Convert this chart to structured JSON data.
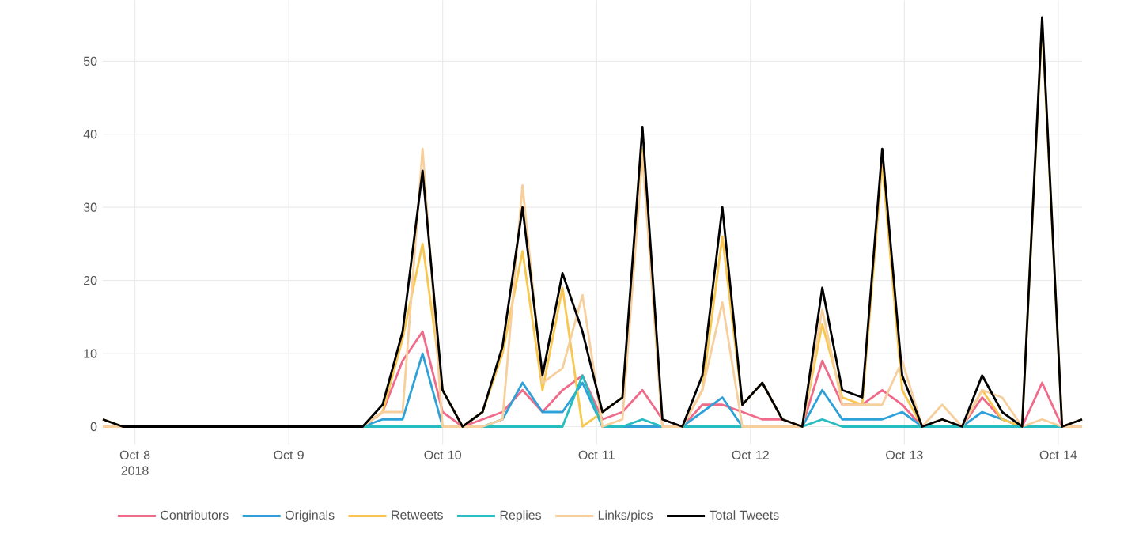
{
  "chart_data": {
    "type": "line",
    "x": [
      "2018-10-07T19:00",
      "2018-10-07T22:07",
      "2018-10-08T01:14",
      "2018-10-08T04:21",
      "2018-10-08T07:28",
      "2018-10-08T10:35",
      "2018-10-08T13:42",
      "2018-10-08T16:49",
      "2018-10-08T19:56",
      "2018-10-08T23:03",
      "2018-10-09T02:10",
      "2018-10-09T05:17",
      "2018-10-09T08:24",
      "2018-10-09T11:31",
      "2018-10-09T14:38",
      "2018-10-09T17:45",
      "2018-10-09T20:52",
      "2018-10-09T23:59",
      "2018-10-10T03:06",
      "2018-10-10T06:13",
      "2018-10-10T09:20",
      "2018-10-10T12:27",
      "2018-10-10T15:34",
      "2018-10-10T18:41",
      "2018-10-10T21:48",
      "2018-10-11T00:55",
      "2018-10-11T04:02",
      "2018-10-11T07:09",
      "2018-10-11T10:16",
      "2018-10-11T13:23",
      "2018-10-11T16:30",
      "2018-10-11T19:37",
      "2018-10-11T22:44",
      "2018-10-12T01:51",
      "2018-10-12T04:58",
      "2018-10-12T08:05",
      "2018-10-12T11:12",
      "2018-10-12T14:19",
      "2018-10-12T17:26",
      "2018-10-12T20:33",
      "2018-10-12T23:40",
      "2018-10-13T02:47",
      "2018-10-13T05:54",
      "2018-10-13T09:01",
      "2018-10-13T12:08",
      "2018-10-13T15:15",
      "2018-10-13T18:22",
      "2018-10-13T21:29",
      "2018-10-14T00:36",
      "2018-10-14T03:43"
    ],
    "series": [
      {
        "name": "Contributors",
        "color": "#f06a8a",
        "values": [
          null,
          null,
          null,
          null,
          null,
          null,
          null,
          null,
          null,
          null,
          null,
          null,
          0,
          0,
          2,
          9,
          13,
          2,
          0,
          1,
          2,
          5,
          2,
          5,
          7,
          1,
          2,
          5,
          1,
          0,
          3,
          3,
          2,
          1,
          1,
          0,
          9,
          3,
          3,
          5,
          3,
          0,
          0,
          0,
          4,
          1,
          0,
          6,
          0,
          0
        ]
      },
      {
        "name": "Originals",
        "color": "#2ea1d9",
        "values": [
          null,
          null,
          null,
          null,
          null,
          null,
          null,
          null,
          null,
          null,
          null,
          null,
          0,
          0,
          1,
          1,
          10,
          0,
          0,
          0,
          1,
          6,
          2,
          2,
          6,
          0,
          0,
          0,
          0,
          0,
          2,
          4,
          0,
          0,
          0,
          0,
          5,
          1,
          1,
          1,
          2,
          0,
          0,
          0,
          2,
          1,
          0,
          0,
          0,
          0
        ]
      },
      {
        "name": "Retweets",
        "color": "#f9c74f",
        "values": [
          1,
          0,
          0,
          0,
          0,
          0,
          0,
          0,
          0,
          0,
          0,
          0,
          0,
          0,
          2,
          12,
          25,
          5,
          0,
          2,
          10,
          24,
          5,
          19,
          0,
          2,
          4,
          38,
          0,
          0,
          5,
          26,
          3,
          6,
          1,
          0,
          14,
          4,
          3,
          36,
          5,
          0,
          1,
          0,
          5,
          1,
          0,
          55,
          0,
          1
        ]
      },
      {
        "name": "Replies",
        "color": "#26bcc0",
        "values": [
          null,
          null,
          null,
          null,
          null,
          null,
          null,
          null,
          null,
          null,
          null,
          null,
          0,
          0,
          0,
          0,
          0,
          0,
          0,
          0,
          0,
          0,
          0,
          0,
          7,
          0,
          0,
          1,
          0,
          0,
          0,
          0,
          0,
          0,
          0,
          0,
          1,
          0,
          0,
          0,
          0,
          0,
          0,
          0,
          0,
          0,
          0,
          0,
          0,
          0
        ]
      },
      {
        "name": "Links/pics",
        "color": "#f7cf9d",
        "values": [
          0,
          0,
          0,
          0,
          0,
          0,
          0,
          0,
          0,
          0,
          0,
          0,
          0,
          0,
          2,
          2,
          38,
          0,
          0,
          0,
          1,
          33,
          6,
          8,
          18,
          0,
          1,
          37,
          0,
          0,
          5,
          17,
          0,
          0,
          0,
          0,
          16,
          3,
          3,
          3,
          9,
          0,
          3,
          0,
          5,
          4,
          0,
          1,
          0,
          0
        ]
      },
      {
        "name": "Total Tweets",
        "color": "#000000",
        "values": [
          1,
          0,
          0,
          0,
          0,
          0,
          0,
          0,
          0,
          0,
          0,
          0,
          0,
          0,
          3,
          13,
          35,
          5,
          0,
          2,
          11,
          30,
          7,
          21,
          13,
          2,
          4,
          41,
          1,
          0,
          7,
          30,
          3,
          6,
          1,
          0,
          19,
          5,
          4,
          38,
          7,
          0,
          1,
          0,
          7,
          2,
          0,
          56,
          0,
          1
        ]
      }
    ],
    "xlim": [
      "2018-10-07T19:00",
      "2018-10-14T03:43"
    ],
    "xticks": [
      {
        "value": "2018-10-08",
        "label": "Oct 8 2018"
      },
      {
        "value": "2018-10-09",
        "label": "Oct 9"
      },
      {
        "value": "2018-10-10",
        "label": "Oct 10"
      },
      {
        "value": "2018-10-11",
        "label": "Oct 11"
      },
      {
        "value": "2018-10-12",
        "label": "Oct 12"
      },
      {
        "value": "2018-10-13",
        "label": "Oct 13"
      },
      {
        "value": "2018-10-14",
        "label": "Oct 14"
      }
    ],
    "ylim": [
      -2.5,
      58.3
    ],
    "yticks": [
      0,
      10,
      20,
      30,
      40,
      50
    ],
    "grid": true,
    "legend": "bottom"
  }
}
